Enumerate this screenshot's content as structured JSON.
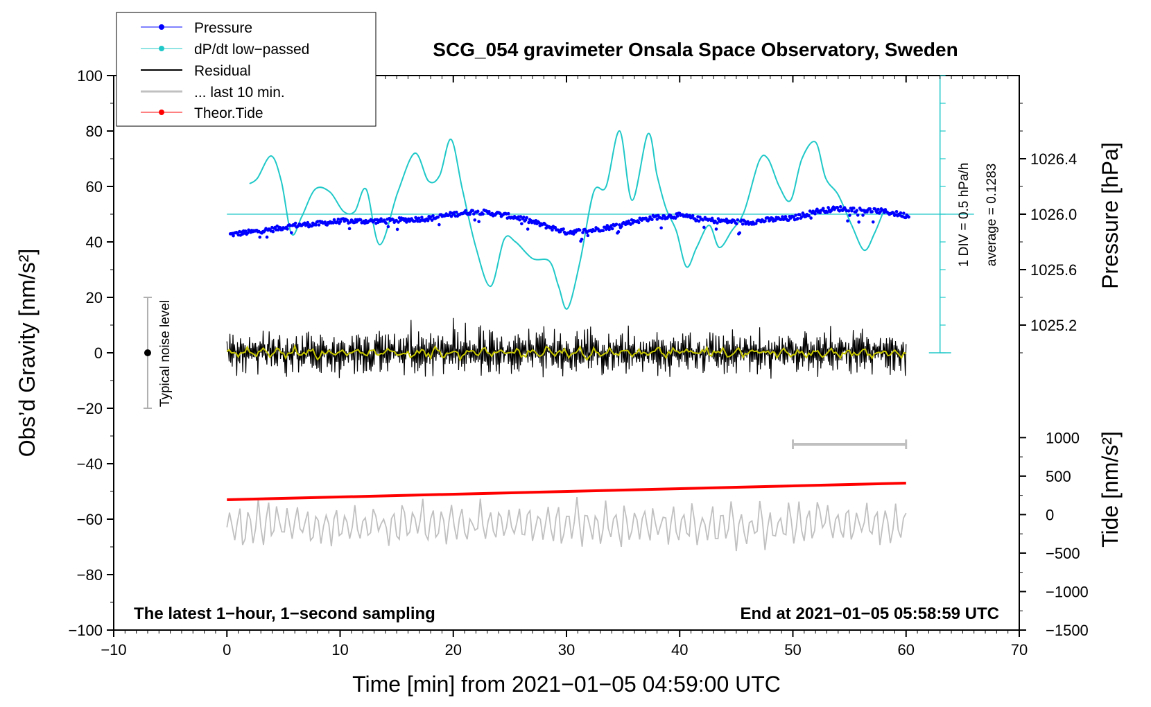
{
  "chart_data": {
    "type": "line",
    "title": "SCG_054 gravimeter Onsala Space Observatory, Sweden",
    "xlabel": "Time [min] from 2021−01−05 04:59:00 UTC",
    "ylabel_left": "Obs’d Gravity [nm/s²]",
    "ylabel_right_top": "Pressure [hPa]",
    "ylabel_right_bottom": "Tide [nm/s²]",
    "xlim": [
      -10,
      70
    ],
    "ylim_left": [
      -100,
      100
    ],
    "pressure_range": [
      1025.0,
      1027.0
    ],
    "tide_range": [
      -1500,
      1500
    ],
    "x_ticks": [
      "−10",
      "0",
      "10",
      "20",
      "30",
      "40",
      "50",
      "60",
      "70"
    ],
    "y_ticks_left": [
      "100",
      "80",
      "60",
      "40",
      "20",
      "0",
      "−20",
      "−40",
      "−60",
      "−80",
      "−100"
    ],
    "pressure_ticks": [
      "1026.4",
      "1026.0",
      "1025.6",
      "1025.2"
    ],
    "tide_ticks": [
      "1000",
      "500",
      "0",
      "−500",
      "−1000",
      "−1500"
    ],
    "legend": [
      {
        "label": "Pressure",
        "color": "#0000ff",
        "marker": true
      },
      {
        "label": "dP/dt low−passed",
        "color": "#20c8c8",
        "marker": true
      },
      {
        "label": "Residual",
        "color": "#000000",
        "marker": false
      },
      {
        "label": "... last 10 min.",
        "color": "#c0c0c0",
        "marker": false
      },
      {
        "label": "Theor.Tide",
        "color": "#ff0000",
        "marker": true
      }
    ],
    "annotations": {
      "bottom_left": "The latest 1−hour, 1−second sampling",
      "bottom_right": "End at 2021−01−05 05:58:59 UTC",
      "noise": "Typical noise level",
      "scale": "1 DIV = 0.5 hPa/h",
      "average": "average = 0.1283"
    },
    "noise_bar": {
      "x": -7,
      "center": 0,
      "low": -20,
      "high": 20
    },
    "scale_axis": {
      "x": 63,
      "from": 0,
      "to": 100,
      "ticks": 10,
      "baseline": 50
    },
    "ten_min_bar": {
      "x_start": 50,
      "x_end": 60,
      "y": -33
    },
    "pressure_series": {
      "color": "#0000ff",
      "x": [
        0,
        2,
        4,
        6,
        8,
        10,
        12,
        14,
        16,
        18,
        20,
        22,
        24,
        26,
        28,
        30,
        32,
        34,
        36,
        38,
        40,
        42,
        44,
        46,
        48,
        50,
        52,
        54,
        56,
        58,
        60
      ],
      "values": [
        1025.85,
        1025.87,
        1025.89,
        1025.92,
        1025.93,
        1025.95,
        1025.95,
        1025.95,
        1025.96,
        1025.97,
        1026.0,
        1026.02,
        1026.0,
        1025.97,
        1025.92,
        1025.87,
        1025.88,
        1025.91,
        1025.95,
        1025.98,
        1025.99,
        1025.96,
        1025.95,
        1025.94,
        1025.96,
        1025.97,
        1026.02,
        1026.04,
        1026.03,
        1026.02,
        1025.99
      ]
    },
    "dpdt_series": {
      "color": "#20c8c8",
      "x": [
        2.0,
        2.7,
        3.9,
        4.8,
        5.7,
        6.6,
        7.8,
        9.1,
        10.3,
        11.3,
        12.3,
        13.5,
        15.1,
        16.6,
        17.8,
        18.8,
        19.8,
        20.8,
        22.0,
        23.3,
        24.5,
        25.5,
        27.0,
        28.5,
        29.3,
        30.1,
        31.2,
        32.4,
        33.5,
        34.7,
        35.8,
        37.2,
        38.0,
        38.8,
        39.7,
        40.6,
        41.5,
        42.6,
        43.5,
        44.6,
        45.7,
        47.0,
        47.8,
        48.8,
        49.8,
        50.8,
        52.0,
        52.9,
        54.0,
        55.2,
        56.3,
        57.2,
        58.0
      ],
      "values": [
        61,
        63,
        71,
        62,
        43,
        49,
        59,
        58,
        51,
        51,
        59,
        39,
        58,
        72,
        62,
        64,
        77,
        59,
        38,
        24,
        41,
        40,
        34,
        33,
        24,
        16,
        33,
        58,
        60,
        80,
        55,
        79,
        64,
        52,
        44,
        31,
        38,
        46,
        38,
        44,
        51,
        69,
        70,
        60,
        55,
        70,
        76,
        63,
        57,
        46,
        37,
        43,
        51
      ]
    },
    "residual_series": {
      "color": "#000000",
      "x_start": 0,
      "x_end": 60,
      "center": 0,
      "amplitude": 8
    },
    "residual_smoothed": {
      "color": "#c8c800",
      "center": 0,
      "amplitude": 2
    },
    "last10_series": {
      "color": "#c0c0c0",
      "x_start": 0,
      "x_end": 60,
      "center": -62,
      "amplitude": 8
    },
    "tide_series": {
      "color": "#ff0000",
      "x": [
        0,
        60
      ],
      "values": [
        -53,
        -47
      ]
    }
  }
}
